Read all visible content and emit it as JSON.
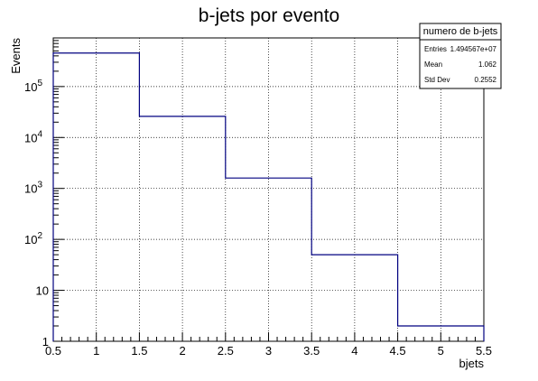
{
  "chart_data": {
    "type": "bar",
    "title": "b-jets por evento",
    "xlabel": "bjets",
    "ylabel": "Events",
    "xlim": [
      0.5,
      5.5
    ],
    "ylim": [
      1,
      900000
    ],
    "yscale": "log",
    "grid": true,
    "legend": "top-right",
    "x_ticks": [
      "0.5",
      "1",
      "1.5",
      "2",
      "2.5",
      "3",
      "3.5",
      "4",
      "4.5",
      "5",
      "5.5"
    ],
    "y_ticks": [
      {
        "label": "1",
        "value": 1
      },
      {
        "label": "10",
        "value": 10
      },
      {
        "label": "10",
        "exp": "2",
        "value": 100
      },
      {
        "label": "10",
        "exp": "3",
        "value": 1000
      },
      {
        "label": "10",
        "exp": "4",
        "value": 10000
      },
      {
        "label": "10",
        "exp": "5",
        "value": 100000
      }
    ],
    "bins": [
      {
        "x0": 0.5,
        "x1": 1.5,
        "value": 455000
      },
      {
        "x0": 1.5,
        "x1": 2.5,
        "value": 26000
      },
      {
        "x0": 2.5,
        "x1": 3.5,
        "value": 1600
      },
      {
        "x0": 3.5,
        "x1": 4.5,
        "value": 50
      },
      {
        "x0": 4.5,
        "x1": 5.5,
        "value": 2
      }
    ],
    "line_color": "#000080",
    "stats_box": {
      "title": "numero de b-jets",
      "rows": [
        {
          "label": "Entries",
          "value": "1.494567e+07"
        },
        {
          "label": "Mean",
          "value": "1.062"
        },
        {
          "label": "Std Dev",
          "value": "0.2552"
        }
      ]
    }
  }
}
